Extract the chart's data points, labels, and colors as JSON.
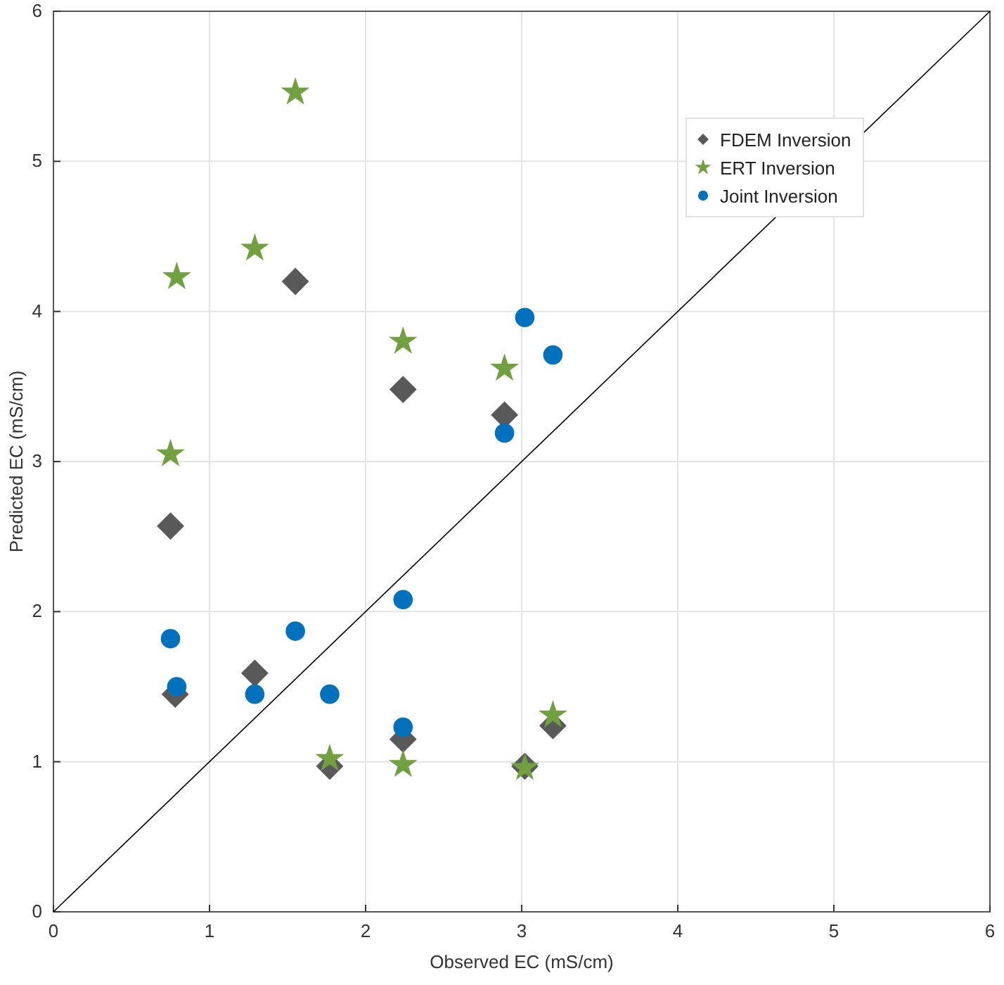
{
  "chart_data": {
    "type": "scatter",
    "xlabel": "Observed EC (mS/cm)",
    "ylabel": "Predicted EC (mS/cm)",
    "xlim": [
      0,
      6
    ],
    "ylim": [
      0,
      6
    ],
    "xticks": [
      0,
      1,
      2,
      3,
      4,
      5,
      6
    ],
    "yticks": [
      0,
      1,
      2,
      3,
      4,
      5,
      6
    ],
    "grid": true,
    "legend": "top right",
    "series": [
      {
        "name": "FDEM Inversion",
        "color": "#595959",
        "marker": "diamond",
        "x": [
          0.75,
          0.78,
          1.29,
          1.55,
          1.77,
          2.24,
          2.24,
          2.89,
          3.02,
          3.2
        ],
        "values": [
          2.57,
          1.45,
          1.59,
          4.2,
          0.97,
          3.48,
          1.15,
          3.31,
          0.97,
          1.24
        ]
      },
      {
        "name": "ERT Inversion",
        "color": "#70a03f",
        "marker": "star",
        "x": [
          0.75,
          0.79,
          1.29,
          1.55,
          1.77,
          2.24,
          2.24,
          2.89,
          3.02,
          3.2
        ],
        "values": [
          3.05,
          4.23,
          4.42,
          5.46,
          1.02,
          3.8,
          0.98,
          3.62,
          0.96,
          1.31
        ]
      },
      {
        "name": "Joint Inversion",
        "color": "#0072bd",
        "marker": "circle",
        "x": [
          0.75,
          0.79,
          1.29,
          1.55,
          1.77,
          2.24,
          2.24,
          2.89,
          3.02,
          3.2
        ],
        "values": [
          1.82,
          1.5,
          1.45,
          1.87,
          1.45,
          2.08,
          1.23,
          3.19,
          3.96,
          3.71
        ]
      },
      {
        "type": "line",
        "color": "#000000",
        "marker": "none",
        "x": [
          0,
          6
        ],
        "values": [
          0,
          6
        ]
      }
    ]
  }
}
